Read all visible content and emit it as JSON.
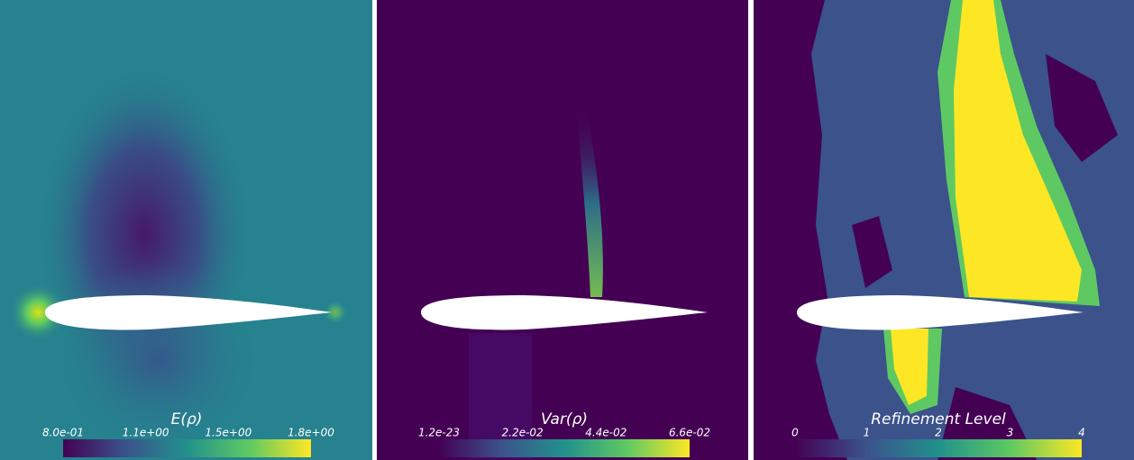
{
  "panels": [
    {
      "title": "E(ρ)",
      "ticks": [
        "8.0e-01",
        "1.1e+00",
        "1.5e+00",
        "1.8e+00"
      ]
    },
    {
      "title": "Var(ρ)",
      "ticks": [
        "1.2e-23",
        "2.2e-02",
        "4.4e-02",
        "6.6e-02"
      ]
    },
    {
      "title": "Refinement Level",
      "ticks": [
        0,
        1,
        2,
        3,
        4
      ]
    }
  ]
}
